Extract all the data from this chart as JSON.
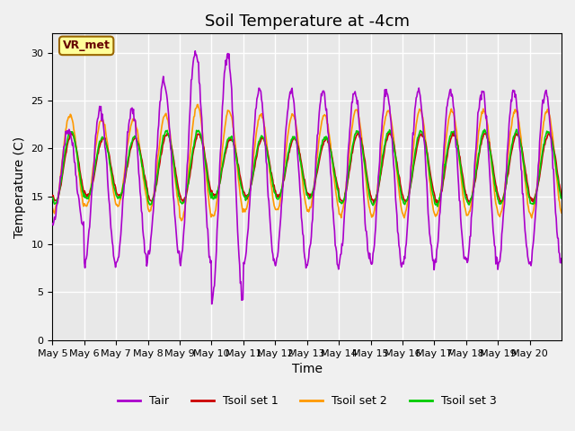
{
  "title": "Soil Temperature at -4cm",
  "xlabel": "Time",
  "ylabel": "Temperature (C)",
  "ylim": [
    0,
    32
  ],
  "yticks": [
    0,
    5,
    10,
    15,
    20,
    25,
    30
  ],
  "xtick_labels": [
    "May 5",
    "May 6",
    "May 7",
    "May 8",
    "May 9",
    "May 10",
    "May 11",
    "May 12",
    "May 13",
    "May 14",
    "May 15",
    "May 16",
    "May 17",
    "May 18",
    "May 19",
    "May 20"
  ],
  "colors": {
    "Tair": "#aa00cc",
    "Tsoil1": "#cc0000",
    "Tsoil2": "#ff9900",
    "Tsoil3": "#00cc00"
  },
  "legend_labels": [
    "Tair",
    "Tsoil set 1",
    "Tsoil set 2",
    "Tsoil set 3"
  ],
  "background_color": "#e8e8e8",
  "annotation_text": "VR_met",
  "annotation_box_color": "#ffff99",
  "annotation_box_edge": "#996600",
  "grid_color": "#ffffff",
  "title_fontsize": 13,
  "axis_fontsize": 10,
  "tick_fontsize": 8
}
